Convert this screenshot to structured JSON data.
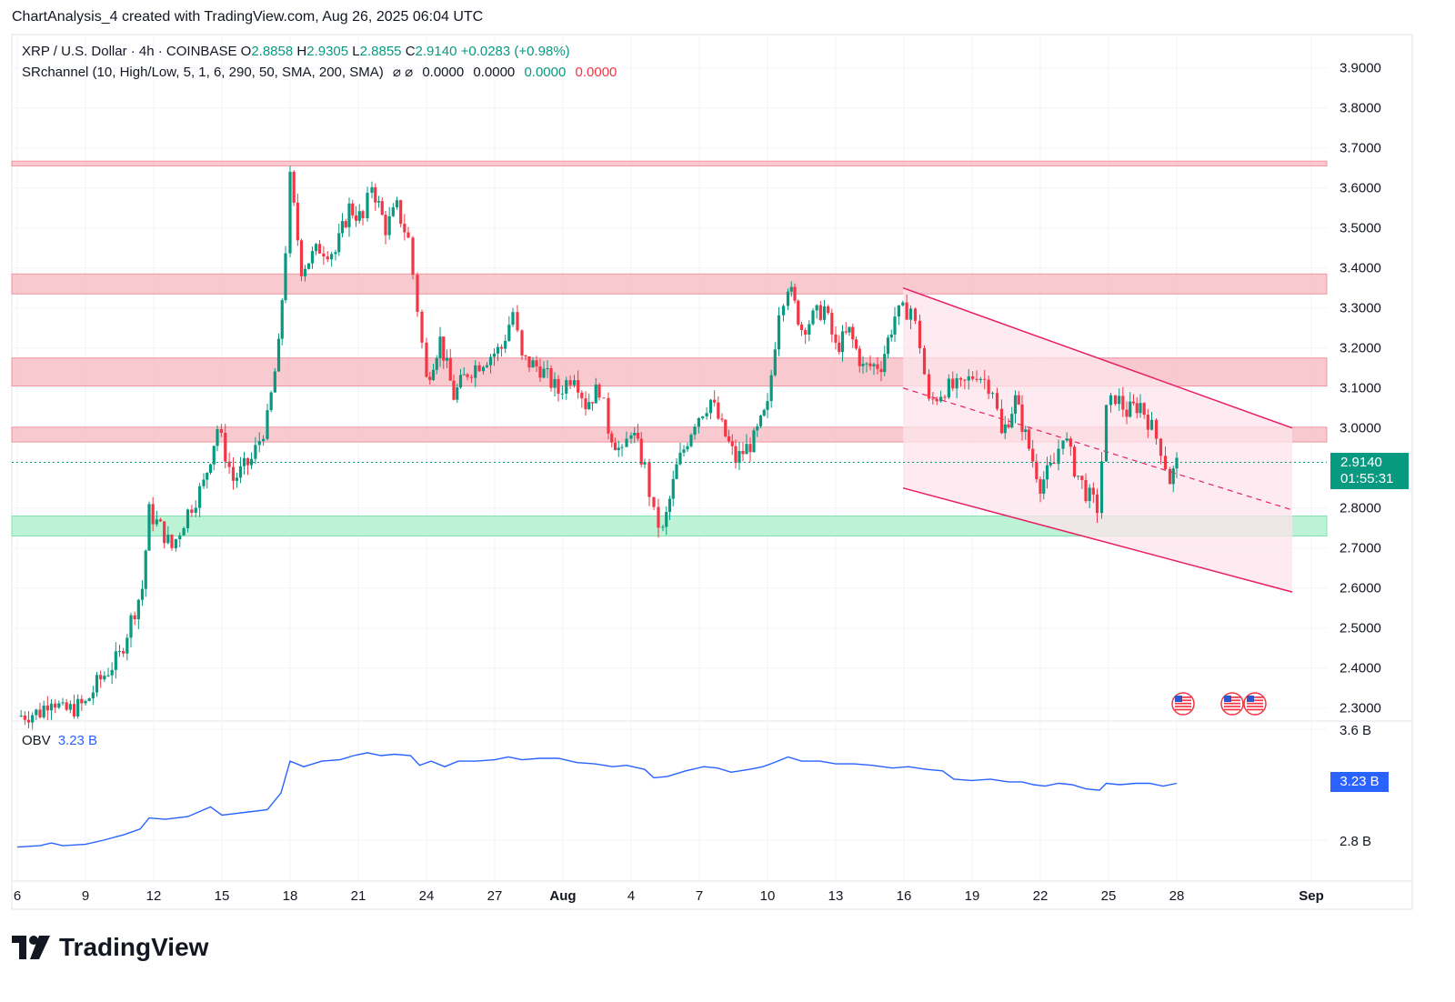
{
  "caption": "ChartAnalysis_4 created with TradingView.com, Aug 26, 2025 06:04 UTC",
  "header": {
    "symbol": "XRP / U.S. Dollar · 4h · COINBASE",
    "open_label": "O",
    "open": "2.8858",
    "high_label": "H",
    "high": "2.9305",
    "low_label": "L",
    "low": "2.8855",
    "close_label": "C",
    "close": "2.9140",
    "change": "+0.0283 (+0.98%)"
  },
  "indicator": {
    "name": "SRchannel (10, High/Low, 5, 1, 6, 290, 50, SMA, 200, SMA)",
    "icons": "⌀ ⌀",
    "v1": "0.0000",
    "v2": "0.0000",
    "v3": "0.0000",
    "v4": "0.0000"
  },
  "price_tag": {
    "price": "2.9140",
    "countdown": "01:55:31"
  },
  "obv": {
    "label": "OBV",
    "value": "3.23 B",
    "tag": "3.23 B"
  },
  "brand": "TradingView",
  "colors": {
    "up": "#089981",
    "down": "#f23645",
    "obv": "#2962ff",
    "resistance": "#f7a9b0",
    "support": "#8fe7bb",
    "channel": "#e91e63"
  },
  "chart_data": {
    "type": "candlestick",
    "instrument": "XRP / U.S. Dollar",
    "interval": "4h",
    "y_axis": {
      "ticks": [
        "3.9000",
        "3.8000",
        "3.7000",
        "3.6000",
        "3.5000",
        "3.4000",
        "3.3000",
        "3.2000",
        "3.1000",
        "3.0000",
        "2.8000",
        "2.7000",
        "2.6000",
        "2.5000",
        "2.4000",
        "2.3000"
      ],
      "range": [
        2.28,
        3.95
      ]
    },
    "x_axis": {
      "ticks": [
        "6",
        "9",
        "12",
        "15",
        "18",
        "21",
        "24",
        "27",
        "Aug",
        "4",
        "7",
        "10",
        "13",
        "16",
        "19",
        "22",
        "25",
        "28",
        "Sep"
      ]
    },
    "resistance_zones": [
      [
        3.655,
        3.667
      ],
      [
        3.335,
        3.385
      ],
      [
        3.105,
        3.175
      ],
      [
        2.965,
        3.002
      ]
    ],
    "support_zones": [
      [
        2.73,
        2.78
      ]
    ],
    "descending_channel": {
      "upper": [
        [
          3.35,
          3.0
        ]
      ],
      "lower": [
        [
          2.85,
          2.59
        ]
      ]
    },
    "close_series": [
      {
        "day": 6.0,
        "c": 2.28
      },
      {
        "day": 7.0,
        "c": 2.29
      },
      {
        "day": 7.5,
        "c": 2.33
      },
      {
        "day": 8.0,
        "c": 2.29
      },
      {
        "day": 9.0,
        "c": 2.31
      },
      {
        "day": 9.5,
        "c": 2.36
      },
      {
        "day": 10.5,
        "c": 2.43
      },
      {
        "day": 11.0,
        "c": 2.52
      },
      {
        "day": 11.5,
        "c": 2.6
      },
      {
        "day": 11.8,
        "c": 2.79
      },
      {
        "day": 12.3,
        "c": 2.75
      },
      {
        "day": 12.8,
        "c": 2.7
      },
      {
        "day": 13.5,
        "c": 2.79
      },
      {
        "day": 14.2,
        "c": 2.86
      },
      {
        "day": 14.8,
        "c": 3.0
      },
      {
        "day": 15.5,
        "c": 2.87
      },
      {
        "day": 16.3,
        "c": 2.92
      },
      {
        "day": 17.0,
        "c": 3.02
      },
      {
        "day": 17.5,
        "c": 3.2
      },
      {
        "day": 17.8,
        "c": 3.45
      },
      {
        "day": 18.0,
        "c": 3.62
      },
      {
        "day": 18.5,
        "c": 3.4
      },
      {
        "day": 19.3,
        "c": 3.45
      },
      {
        "day": 20.0,
        "c": 3.44
      },
      {
        "day": 20.6,
        "c": 3.55
      },
      {
        "day": 21.2,
        "c": 3.52
      },
      {
        "day": 21.6,
        "c": 3.61
      },
      {
        "day": 22.2,
        "c": 3.5
      },
      {
        "day": 22.7,
        "c": 3.55
      },
      {
        "day": 23.2,
        "c": 3.47
      },
      {
        "day": 23.6,
        "c": 3.3
      },
      {
        "day": 24.0,
        "c": 3.12
      },
      {
        "day": 24.6,
        "c": 3.22
      },
      {
        "day": 25.2,
        "c": 3.08
      },
      {
        "day": 25.8,
        "c": 3.14
      },
      {
        "day": 26.5,
        "c": 3.17
      },
      {
        "day": 27.3,
        "c": 3.2
      },
      {
        "day": 27.8,
        "c": 3.29
      },
      {
        "day": 28.2,
        "c": 3.17
      },
      {
        "day": 29.0,
        "c": 3.15
      },
      {
        "day": 29.8,
        "c": 3.09
      },
      {
        "day": 30.5,
        "c": 3.14
      },
      {
        "day": 31.0,
        "c": 3.06
      },
      {
        "day": 31.6,
        "c": 3.1
      },
      {
        "day": 32.0,
        "c": 3.0
      },
      {
        "day": 32.6,
        "c": 2.93
      },
      {
        "day": 33.0,
        "c": 3.0
      },
      {
        "day": 33.6,
        "c": 2.9
      },
      {
        "day": 34.0,
        "c": 2.78
      },
      {
        "day": 34.4,
        "c": 2.74
      },
      {
        "day": 35.0,
        "c": 2.9
      },
      {
        "day": 35.8,
        "c": 3.02
      },
      {
        "day": 36.5,
        "c": 3.07
      },
      {
        "day": 37.0,
        "c": 3.0
      },
      {
        "day": 37.6,
        "c": 2.92
      },
      {
        "day": 38.4,
        "c": 2.97
      },
      {
        "day": 39.0,
        "c": 3.05
      },
      {
        "day": 39.5,
        "c": 3.3
      },
      {
        "day": 39.9,
        "c": 3.36
      },
      {
        "day": 40.5,
        "c": 3.25
      },
      {
        "day": 41.5,
        "c": 3.3
      },
      {
        "day": 42.0,
        "c": 3.2
      },
      {
        "day": 42.6,
        "c": 3.24
      },
      {
        "day": 43.2,
        "c": 3.15
      },
      {
        "day": 44.0,
        "c": 3.16
      },
      {
        "day": 44.6,
        "c": 3.28
      },
      {
        "day": 45.3,
        "c": 3.3
      },
      {
        "day": 45.7,
        "c": 3.21
      },
      {
        "day": 46.1,
        "c": 3.06
      },
      {
        "day": 46.8,
        "c": 3.1
      },
      {
        "day": 47.5,
        "c": 3.1
      },
      {
        "day": 48.2,
        "c": 3.14
      },
      {
        "day": 48.9,
        "c": 3.1
      },
      {
        "day": 49.3,
        "c": 2.98
      },
      {
        "day": 49.9,
        "c": 3.07
      },
      {
        "day": 50.5,
        "c": 2.95
      },
      {
        "day": 51.0,
        "c": 2.86
      },
      {
        "day": 51.6,
        "c": 2.91
      },
      {
        "day": 52.0,
        "c": 2.99
      },
      {
        "day": 52.5,
        "c": 2.9
      },
      {
        "day": 53.0,
        "c": 2.84
      },
      {
        "day": 53.5,
        "c": 2.8
      },
      {
        "day": 53.9,
        "c": 3.04
      },
      {
        "day": 54.3,
        "c": 3.08
      },
      {
        "day": 54.8,
        "c": 3.04
      },
      {
        "day": 55.4,
        "c": 3.06
      },
      {
        "day": 55.9,
        "c": 3.0
      },
      {
        "day": 56.3,
        "c": 2.95
      },
      {
        "day": 56.7,
        "c": 2.87
      },
      {
        "day": 57.0,
        "c": 2.91
      }
    ],
    "obv_series": [
      {
        "day": 6.0,
        "v": 2.75
      },
      {
        "day": 7.0,
        "v": 2.76
      },
      {
        "day": 7.5,
        "v": 2.78
      },
      {
        "day": 8.0,
        "v": 2.76
      },
      {
        "day": 9.0,
        "v": 2.77
      },
      {
        "day": 9.8,
        "v": 2.8
      },
      {
        "day": 10.7,
        "v": 2.84
      },
      {
        "day": 11.4,
        "v": 2.88
      },
      {
        "day": 11.8,
        "v": 2.96
      },
      {
        "day": 12.5,
        "v": 2.95
      },
      {
        "day": 13.5,
        "v": 2.97
      },
      {
        "day": 14.5,
        "v": 3.04
      },
      {
        "day": 15.0,
        "v": 2.98
      },
      {
        "day": 16.0,
        "v": 3.0
      },
      {
        "day": 17.0,
        "v": 3.02
      },
      {
        "day": 17.6,
        "v": 3.14
      },
      {
        "day": 18.0,
        "v": 3.37
      },
      {
        "day": 18.6,
        "v": 3.33
      },
      {
        "day": 19.4,
        "v": 3.37
      },
      {
        "day": 20.2,
        "v": 3.38
      },
      {
        "day": 20.8,
        "v": 3.41
      },
      {
        "day": 21.4,
        "v": 3.43
      },
      {
        "day": 22.0,
        "v": 3.41
      },
      {
        "day": 22.6,
        "v": 3.42
      },
      {
        "day": 23.3,
        "v": 3.41
      },
      {
        "day": 23.7,
        "v": 3.34
      },
      {
        "day": 24.2,
        "v": 3.37
      },
      {
        "day": 24.8,
        "v": 3.33
      },
      {
        "day": 25.4,
        "v": 3.37
      },
      {
        "day": 26.2,
        "v": 3.37
      },
      {
        "day": 27.0,
        "v": 3.38
      },
      {
        "day": 27.6,
        "v": 3.4
      },
      {
        "day": 28.2,
        "v": 3.38
      },
      {
        "day": 29.0,
        "v": 3.39
      },
      {
        "day": 29.8,
        "v": 3.39
      },
      {
        "day": 30.6,
        "v": 3.36
      },
      {
        "day": 31.4,
        "v": 3.35
      },
      {
        "day": 32.2,
        "v": 3.33
      },
      {
        "day": 32.8,
        "v": 3.34
      },
      {
        "day": 33.6,
        "v": 3.31
      },
      {
        "day": 34.0,
        "v": 3.25
      },
      {
        "day": 34.6,
        "v": 3.26
      },
      {
        "day": 35.4,
        "v": 3.3
      },
      {
        "day": 36.2,
        "v": 3.33
      },
      {
        "day": 36.8,
        "v": 3.32
      },
      {
        "day": 37.4,
        "v": 3.29
      },
      {
        "day": 38.2,
        "v": 3.31
      },
      {
        "day": 38.8,
        "v": 3.33
      },
      {
        "day": 39.3,
        "v": 3.36
      },
      {
        "day": 39.9,
        "v": 3.4
      },
      {
        "day": 40.5,
        "v": 3.37
      },
      {
        "day": 41.3,
        "v": 3.37
      },
      {
        "day": 42.0,
        "v": 3.35
      },
      {
        "day": 42.8,
        "v": 3.35
      },
      {
        "day": 43.6,
        "v": 3.34
      },
      {
        "day": 44.5,
        "v": 3.32
      },
      {
        "day": 45.2,
        "v": 3.33
      },
      {
        "day": 46.0,
        "v": 3.31
      },
      {
        "day": 46.7,
        "v": 3.3
      },
      {
        "day": 47.2,
        "v": 3.24
      },
      {
        "day": 48.0,
        "v": 3.23
      },
      {
        "day": 48.8,
        "v": 3.24
      },
      {
        "day": 49.6,
        "v": 3.22
      },
      {
        "day": 50.2,
        "v": 3.22
      },
      {
        "day": 50.7,
        "v": 3.2
      },
      {
        "day": 51.2,
        "v": 3.19
      },
      {
        "day": 51.8,
        "v": 3.21
      },
      {
        "day": 52.4,
        "v": 3.2
      },
      {
        "day": 53.0,
        "v": 3.17
      },
      {
        "day": 53.6,
        "v": 3.16
      },
      {
        "day": 53.9,
        "v": 3.21
      },
      {
        "day": 54.5,
        "v": 3.2
      },
      {
        "day": 55.2,
        "v": 3.21
      },
      {
        "day": 55.8,
        "v": 3.21
      },
      {
        "day": 56.4,
        "v": 3.19
      },
      {
        "day": 57.0,
        "v": 3.21
      }
    ],
    "obv_axis": {
      "ticks": [
        "3.6 B",
        "2.8 B"
      ],
      "range": [
        2.72,
        3.63
      ]
    }
  }
}
